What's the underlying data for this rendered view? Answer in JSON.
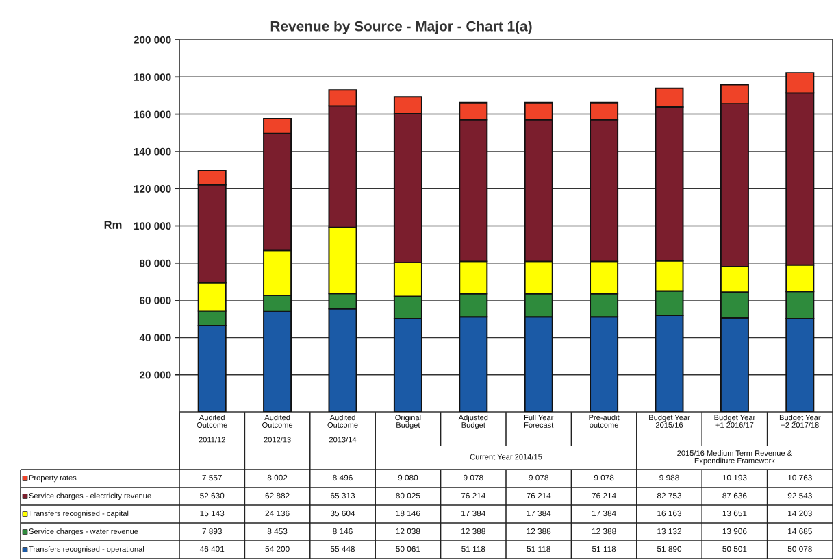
{
  "chart_data": {
    "type": "bar",
    "title": "Revenue by Source - Major - Chart 1(a)",
    "ylabel": "Rm",
    "categories": [
      "Audited\nOutcome\n\n2011/12",
      "Audited\nOutcome\n\n2012/13",
      "Audited\nOutcome\n\n2013/14",
      "Original\nBudget",
      "Adjusted\nBudget",
      "Full Year\nForecast",
      "Pre-audit\noutcome",
      "Budget Year\n2015/16",
      "Budget Year\n+1 2016/17",
      "Budget Year\n+2 2017/18"
    ],
    "series": [
      {
        "name": "Transfers recognised - operational",
        "color": "#1b5aa6",
        "values": [
          46401,
          54200,
          55448,
          50061,
          51118,
          51118,
          51118,
          51890,
          50501,
          50078
        ]
      },
      {
        "name": "Service charges - water revenue",
        "color": "#2e8b3c",
        "values": [
          7893,
          8453,
          8146,
          12038,
          12388,
          12388,
          12388,
          13132,
          13906,
          14685
        ]
      },
      {
        "name": "Transfers recognised - capital",
        "color": "#ffff00",
        "values": [
          15143,
          24136,
          35604,
          18146,
          17384,
          17384,
          17384,
          16163,
          13651,
          14203
        ]
      },
      {
        "name": "Service charges - electricity revenue",
        "color": "#7b1e2d",
        "values": [
          52630,
          62882,
          65313,
          80025,
          76214,
          76214,
          76214,
          82753,
          87636,
          92543
        ]
      },
      {
        "name": "Property rates",
        "color": "#ef4328",
        "values": [
          7557,
          8002,
          8496,
          9080,
          9078,
          9078,
          9078,
          9988,
          10193,
          10763
        ]
      }
    ],
    "stacked": true,
    "ylim": [
      0,
      200000
    ],
    "yticks": [
      {
        "value": 20000,
        "label": "20 000"
      },
      {
        "value": 40000,
        "label": "40 000"
      },
      {
        "value": 60000,
        "label": "60 000"
      },
      {
        "value": 80000,
        "label": "80 000"
      },
      {
        "value": 100000,
        "label": "100 000"
      },
      {
        "value": 120000,
        "label": "120 000"
      },
      {
        "value": 140000,
        "label": "140 000"
      },
      {
        "value": 160000,
        "label": "160 000"
      },
      {
        "value": 180000,
        "label": "180 000"
      },
      {
        "value": 200000,
        "label": "200 000"
      }
    ],
    "grid": "y",
    "legend": "bottom",
    "data_labels": true,
    "annotations": [
      "Current Year 2014/15",
      "2015/16 Medium Term Revenue &\nExpenditure Framework"
    ]
  }
}
